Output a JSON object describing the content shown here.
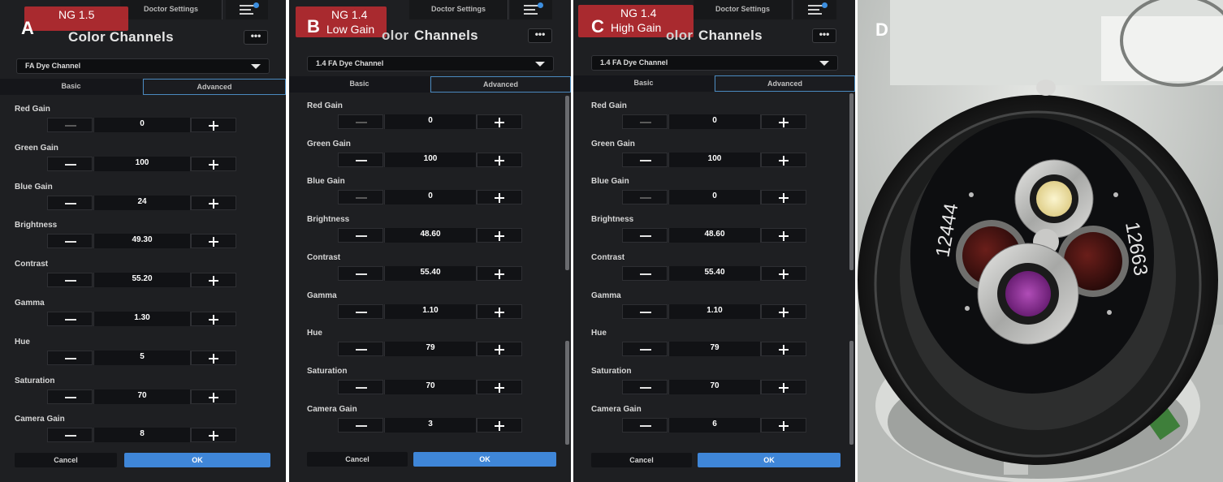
{
  "panel_a": {
    "letter": "A",
    "badge": [
      "NG 1.5"
    ],
    "doctor_tab": "Doctor Settings",
    "title": "Color Channels",
    "more": "•••",
    "dropdown": "FA Dye Channel",
    "tab_basic": "Basic",
    "tab_advanced": "Advanced",
    "labels": [
      "Red Gain",
      "Green Gain",
      "Blue Gain",
      "Brightness",
      "Contrast",
      "Gamma",
      "Hue",
      "Saturation",
      "Camera Gain"
    ],
    "values": [
      "0",
      "100",
      "24",
      "49.30",
      "55.20",
      "1.30",
      "5",
      "70",
      "8"
    ],
    "cancel": "Cancel",
    "ok": "OK"
  },
  "panel_b": {
    "letter": "B",
    "badge": [
      "NG 1.4",
      "Low Gain"
    ],
    "doctor_tab": "Doctor Settings",
    "title": "Channels",
    "title_fragment": "olor",
    "more": "•••",
    "dropdown": "1.4 FA Dye Channel",
    "tab_basic": "Basic",
    "tab_advanced": "Advanced",
    "labels": [
      "Red Gain",
      "Green Gain",
      "Blue Gain",
      "Brightness",
      "Contrast",
      "Gamma",
      "Hue",
      "Saturation",
      "Camera Gain"
    ],
    "values": [
      "0",
      "100",
      "0",
      "48.60",
      "55.40",
      "1.10",
      "79",
      "70",
      "3"
    ],
    "cancel": "Cancel",
    "ok": "OK"
  },
  "panel_c": {
    "letter": "C",
    "badge": [
      "NG 1.4",
      "High Gain"
    ],
    "doctor_tab": "Doctor Settings",
    "title": "Channels",
    "title_fragment": "olor",
    "more": "•••",
    "dropdown": "1.4 FA Dye Channel",
    "tab_basic": "Basic",
    "tab_advanced": "Advanced",
    "labels": [
      "Red Gain",
      "Green Gain",
      "Blue Gain",
      "Brightness",
      "Contrast",
      "Gamma",
      "Hue",
      "Saturation",
      "Camera Gain"
    ],
    "values": [
      "0",
      "100",
      "0",
      "48.60",
      "55.40",
      "1.10",
      "79",
      "70",
      "6"
    ],
    "cancel": "Cancel",
    "ok": "OK"
  },
  "photo": {
    "letter": "D",
    "left_label": "12444",
    "right_label": "12663"
  },
  "colors": {
    "panel_bg": "#1e1f22",
    "accent_blue": "#3f86d8",
    "badge_red": "#c82d32",
    "red_gain_line": [
      "#4fc3d9",
      "#d33a3a"
    ],
    "green_gain_line": [
      "#c13bd1",
      "#5fc04a"
    ],
    "blue_gain_line": [
      "#c9c23a",
      "#3a8fd6"
    ]
  }
}
